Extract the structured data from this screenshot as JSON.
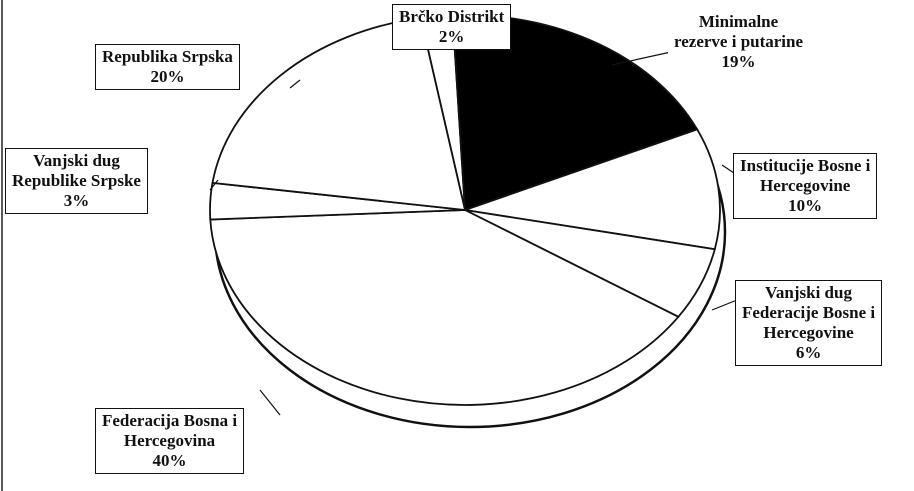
{
  "chart_data": {
    "type": "pie",
    "categories": [
      "Brčko Distrikt",
      "Minimalne\nrezerve i putarine",
      "Institucije Bosne i\nHercegovine",
      "Vanjski dug\nFederacije Bosne i\nHercegovine",
      "Federacija Bosna i\nHercegovina",
      "Vanjski dug\nRepublike Srpske",
      "Republika Srpska"
    ],
    "values": [
      2,
      19,
      10,
      6,
      40,
      3,
      20
    ],
    "value_labels": [
      "2%",
      "19%",
      "10%",
      "6%",
      "40%",
      "3%",
      "20%"
    ],
    "colors": [
      "#ffffff",
      "#000000",
      "#ffffff",
      "#ffffff",
      "#ffffff",
      "#ffffff",
      "#ffffff"
    ]
  }
}
